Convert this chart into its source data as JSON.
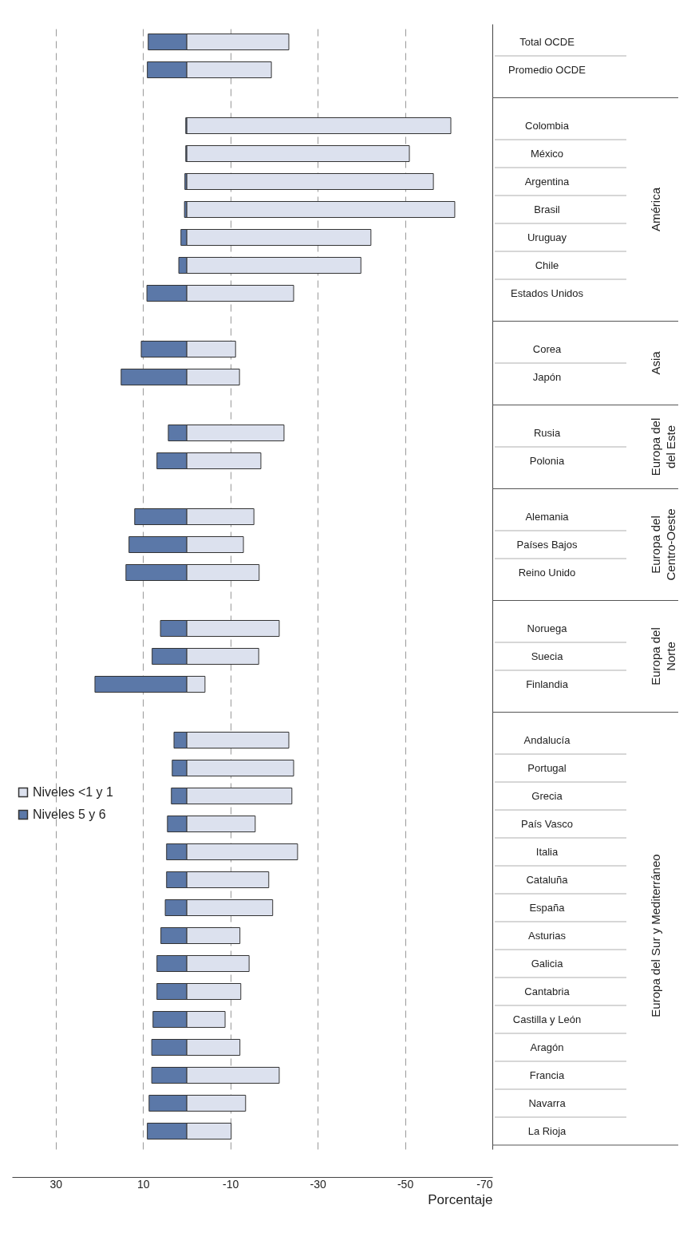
{
  "chart_data": {
    "type": "bar",
    "stacked": true,
    "orientation": "horizontal",
    "xlabel": "Porcentaje",
    "categories": [
      "Total OCDE",
      "Promedio OCDE",
      null,
      "Colombia",
      "México",
      "Argentina",
      "Brasil",
      "Uruguay",
      "Chile",
      "Estados Unidos",
      null,
      "Corea",
      "Japón",
      null,
      "Rusia",
      "Polonia",
      null,
      "Alemania",
      "Países Bajos",
      "Reino Unido",
      null,
      "Noruega",
      "Suecia",
      "Finlandia",
      null,
      "Andalucía",
      "Portugal",
      "Grecia",
      "País Vasco",
      "Italia",
      "Cataluña",
      "España",
      "Asturias",
      "Galicia",
      "Cantabria",
      "Castilla y León",
      "Aragón",
      "Francia",
      "Navarra",
      "La Rioja"
    ],
    "series": [
      {
        "name": "Niveles <1 y 1",
        "color": "#dce1ee",
        "values": [
          -23.4,
          -19.4,
          null,
          -60.5,
          -51.0,
          -56.5,
          -61.4,
          -42.2,
          -39.9,
          -24.5,
          null,
          -11.2,
          -12.1,
          null,
          -22.3,
          -17.0,
          null,
          -15.4,
          -13.0,
          -16.6,
          null,
          -21.2,
          -16.5,
          -4.2,
          null,
          -23.4,
          -24.5,
          -24.1,
          -15.7,
          -25.4,
          -18.8,
          -19.7,
          -12.2,
          -14.3,
          -12.4,
          -8.8,
          -12.2,
          -21.2,
          -13.5,
          -10.2
        ]
      },
      {
        "name": "Niveles 5 y 6",
        "color": "#5b78a8",
        "values": [
          8.8,
          9.0,
          null,
          0.2,
          0.2,
          0.4,
          0.5,
          1.3,
          1.8,
          9.1,
          null,
          10.4,
          15.0,
          null,
          4.2,
          6.8,
          null,
          11.9,
          13.2,
          13.9,
          null,
          6.0,
          7.9,
          21.0,
          null,
          2.9,
          3.3,
          3.5,
          4.4,
          4.6,
          4.6,
          4.9,
          5.9,
          6.8,
          6.8,
          7.7,
          8.0,
          8.0,
          8.6,
          9.0
        ]
      }
    ],
    "xlim": [
      40,
      -70
    ],
    "xticks": [
      30,
      10,
      -10,
      -30,
      -50,
      -70
    ],
    "grid": "x",
    "legend": "left",
    "annotations": [
      "América",
      "Asia",
      "Europa del\ndel Este",
      "Europa del\nCentro-Oeste",
      "Europa del\nNorte",
      "Europa del Sur y Mediterráneo"
    ]
  }
}
